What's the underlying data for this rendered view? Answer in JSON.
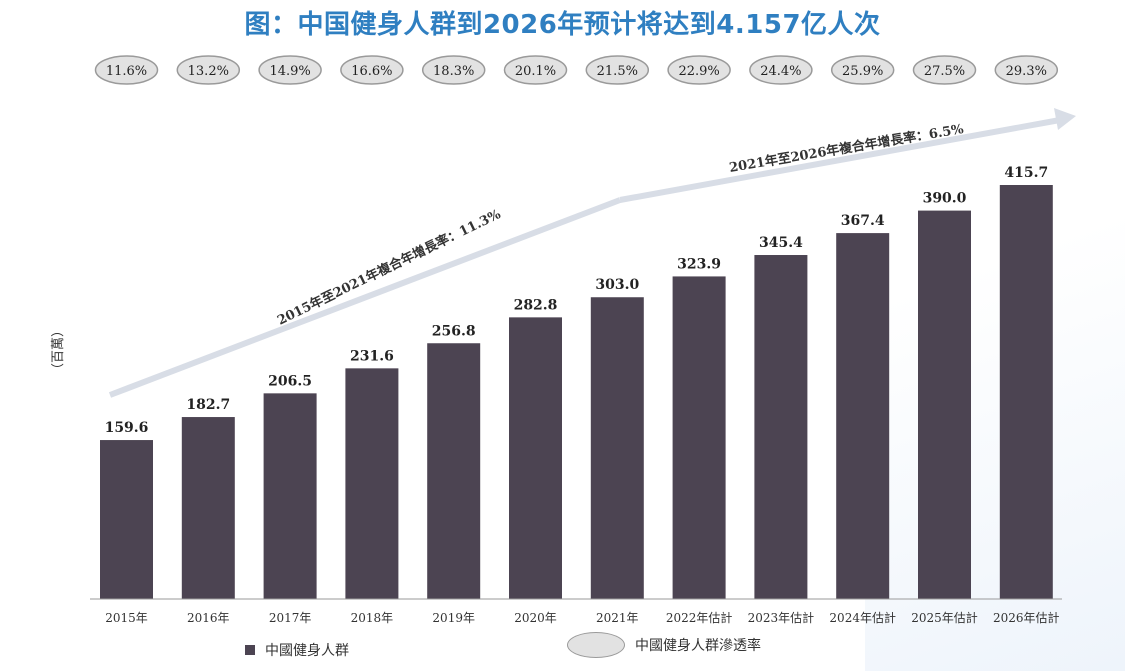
{
  "title": "图：中国健身人群到2026年预计将达到4.157亿人次",
  "chart_data": {
    "type": "bar",
    "categories": [
      "2015年",
      "2016年",
      "2017年",
      "2018年",
      "2019年",
      "2020年",
      "2021年",
      "2022年估計",
      "2023年估計",
      "2024年估計",
      "2025年估計",
      "2026年估計"
    ],
    "series": [
      {
        "name": "中國健身人群",
        "values": [
          159.6,
          182.7,
          206.5,
          231.6,
          256.8,
          282.8,
          303.0,
          323.9,
          345.4,
          367.4,
          390.0,
          415.7
        ]
      }
    ],
    "penetration": {
      "name": "中國健身人群滲透率",
      "values": [
        "11.6%",
        "13.2%",
        "14.9%",
        "16.6%",
        "18.3%",
        "20.1%",
        "21.5%",
        "22.9%",
        "24.4%",
        "25.9%",
        "27.5%",
        "29.3%"
      ]
    },
    "ylabel": "（百萬）",
    "ylim": [
      0,
      415.7
    ],
    "annotations": [
      "2015年至2021年複合年增長率：11.3%",
      "2021年至2026年複合年增長率：6.5%"
    ],
    "colors": {
      "bar": "#4c4452",
      "ellipse_fill": "#e2e2e2",
      "ellipse_stroke": "#9a9a9a",
      "title": "#2f7fc1",
      "arrow": "#d8dde6"
    },
    "legend_position": "bottom"
  }
}
